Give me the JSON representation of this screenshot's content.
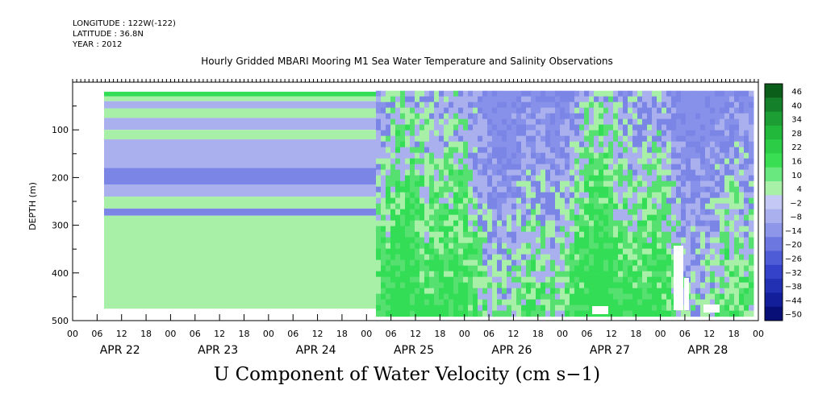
{
  "header": {
    "longitude": "LONGITUDE : 122W(-122)",
    "latitude": "LATITUDE : 36.8N",
    "year": "YEAR : 2012"
  },
  "title": "Hourly Gridded MBARI Mooring M1 Sea Water Temperature and Salinity Observations",
  "bottom_title": "U Component of Water Velocity (cm s−1)",
  "colors": {
    "green_light": "#a8f0a8",
    "green": "#33dd55",
    "blue_light": "#aab0ee",
    "blue": "#7a85e6"
  },
  "chart_data": {
    "type": "heatmap",
    "ylabel": "DEPTH (m)",
    "ylim": [
      500,
      0
    ],
    "y_ticks": [
      "100",
      "200",
      "300",
      "400",
      "500"
    ],
    "hour_ticks": [
      "00",
      "06",
      "12",
      "18",
      "00",
      "06",
      "12",
      "18",
      "00",
      "06",
      "12",
      "18",
      "00",
      "06",
      "12",
      "18",
      "00",
      "06",
      "12",
      "18",
      "00",
      "06",
      "12",
      "18",
      "00",
      "06",
      "12",
      "18",
      "00"
    ],
    "day_labels": [
      "APR 22",
      "APR 23",
      "APR 24",
      "APR 25",
      "APR 26",
      "APR 27",
      "APR 28"
    ],
    "colorbar_levels": [
      "46",
      "40",
      "34",
      "28",
      "22",
      "16",
      "10",
      "4",
      "−2",
      "−8",
      "−14",
      "−20",
      "−26",
      "−32",
      "−38",
      "−44",
      "−50"
    ],
    "colorbar_colors": [
      "#0b5e1a",
      "#14802a",
      "#1c9e34",
      "#22b83c",
      "#2ccc46",
      "#3ade52",
      "#6ae880",
      "#a8f0a8",
      "#c4c8f4",
      "#aab0ee",
      "#8d96e8",
      "#6c78e0",
      "#4e5cd6",
      "#3342c8",
      "#2230b4",
      "#131f9a",
      "#081078"
    ],
    "profile_wave": [
      {
        "depth_range": [
          20,
          30
        ],
        "level": "green"
      },
      {
        "depth_range": [
          30,
          40
        ],
        "level": "green_light"
      },
      {
        "depth_range": [
          40,
          55
        ],
        "level": "blue_light"
      },
      {
        "depth_range": [
          55,
          75
        ],
        "level": "green_light"
      },
      {
        "depth_range": [
          75,
          100
        ],
        "level": "blue_light"
      },
      {
        "depth_range": [
          100,
          120
        ],
        "level": "green_light"
      },
      {
        "depth_range": [
          120,
          180
        ],
        "level": "blue_light"
      },
      {
        "depth_range": [
          180,
          215
        ],
        "level": "blue"
      },
      {
        "depth_range": [
          215,
          240
        ],
        "level": "blue_light"
      },
      {
        "depth_range": [
          240,
          265
        ],
        "level": "green_light"
      },
      {
        "depth_range": [
          265,
          280
        ],
        "level": "blue"
      },
      {
        "depth_range": [
          280,
          475
        ],
        "level": "green_light"
      }
    ]
  }
}
